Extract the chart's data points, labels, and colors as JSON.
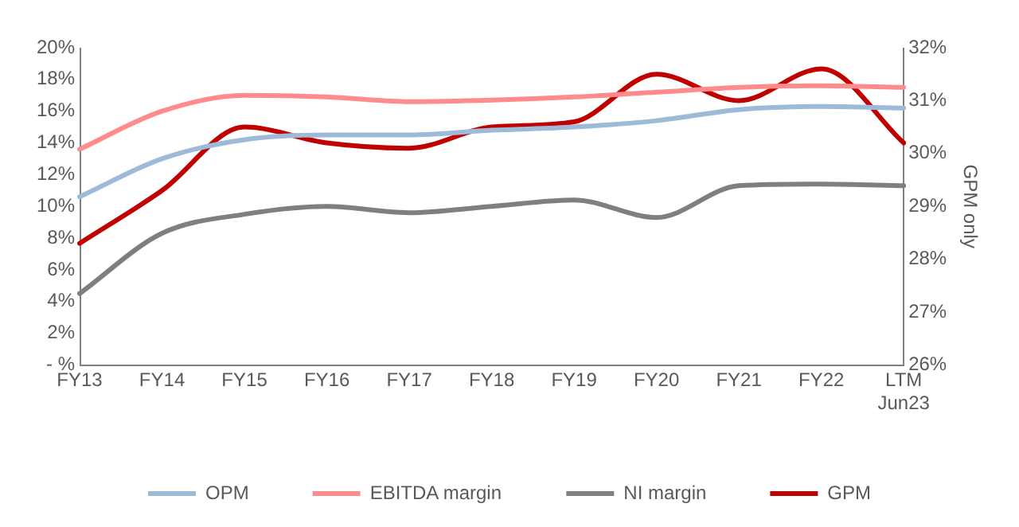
{
  "chart_data": {
    "type": "line",
    "categories": [
      "FY13",
      "FY14",
      "FY15",
      "FY16",
      "FY17",
      "FY18",
      "FY19",
      "FY20",
      "FY21",
      "FY22",
      "LTM\nJun23"
    ],
    "series": [
      {
        "name": "OPM",
        "color": "#9dbad8",
        "values": [
          10.6,
          13.0,
          14.2,
          14.5,
          14.5,
          14.8,
          15.0,
          15.4,
          16.1,
          16.3,
          16.2
        ]
      },
      {
        "name": "EBITDA margin",
        "color": "#ff8c8c",
        "values": [
          13.6,
          16.0,
          17.0,
          16.9,
          16.6,
          16.7,
          16.9,
          17.2,
          17.5,
          17.6,
          17.5
        ]
      },
      {
        "name": "NI margin",
        "color": "#7f7f7f",
        "values": [
          4.5,
          8.3,
          9.5,
          10.0,
          9.6,
          10.0,
          10.4,
          9.3,
          11.3,
          11.4,
          11.3
        ]
      },
      {
        "name": "GPM",
        "color": "#c00000",
        "axis": "y2",
        "values": [
          28.3,
          29.3,
          30.5,
          30.2,
          30.1,
          30.5,
          30.6,
          31.5,
          31.0,
          31.6,
          30.2
        ]
      }
    ],
    "ylim": [
      0,
      20
    ],
    "yticks": [
      {
        "value": 0,
        "label": "- %"
      },
      {
        "value": 2,
        "label": "2%"
      },
      {
        "value": 4,
        "label": "4%"
      },
      {
        "value": 6,
        "label": "6%"
      },
      {
        "value": 8,
        "label": "8%"
      },
      {
        "value": 10,
        "label": "10%"
      },
      {
        "value": 12,
        "label": "12%"
      },
      {
        "value": 14,
        "label": "14%"
      },
      {
        "value": 16,
        "label": "16%"
      },
      {
        "value": 18,
        "label": "18%"
      },
      {
        "value": 20,
        "label": "20%"
      }
    ],
    "y2lim": [
      26,
      32
    ],
    "y2ticks": [
      {
        "value": 26,
        "label": "26%"
      },
      {
        "value": 27,
        "label": "27%"
      },
      {
        "value": 28,
        "label": "28%"
      },
      {
        "value": 29,
        "label": "29%"
      },
      {
        "value": 30,
        "label": "30%"
      },
      {
        "value": 31,
        "label": "31%"
      },
      {
        "value": 32,
        "label": "32%"
      }
    ],
    "y2label": "GPM only",
    "legend": "bottom",
    "grid": false,
    "marker": "none",
    "line_style": "solid"
  }
}
